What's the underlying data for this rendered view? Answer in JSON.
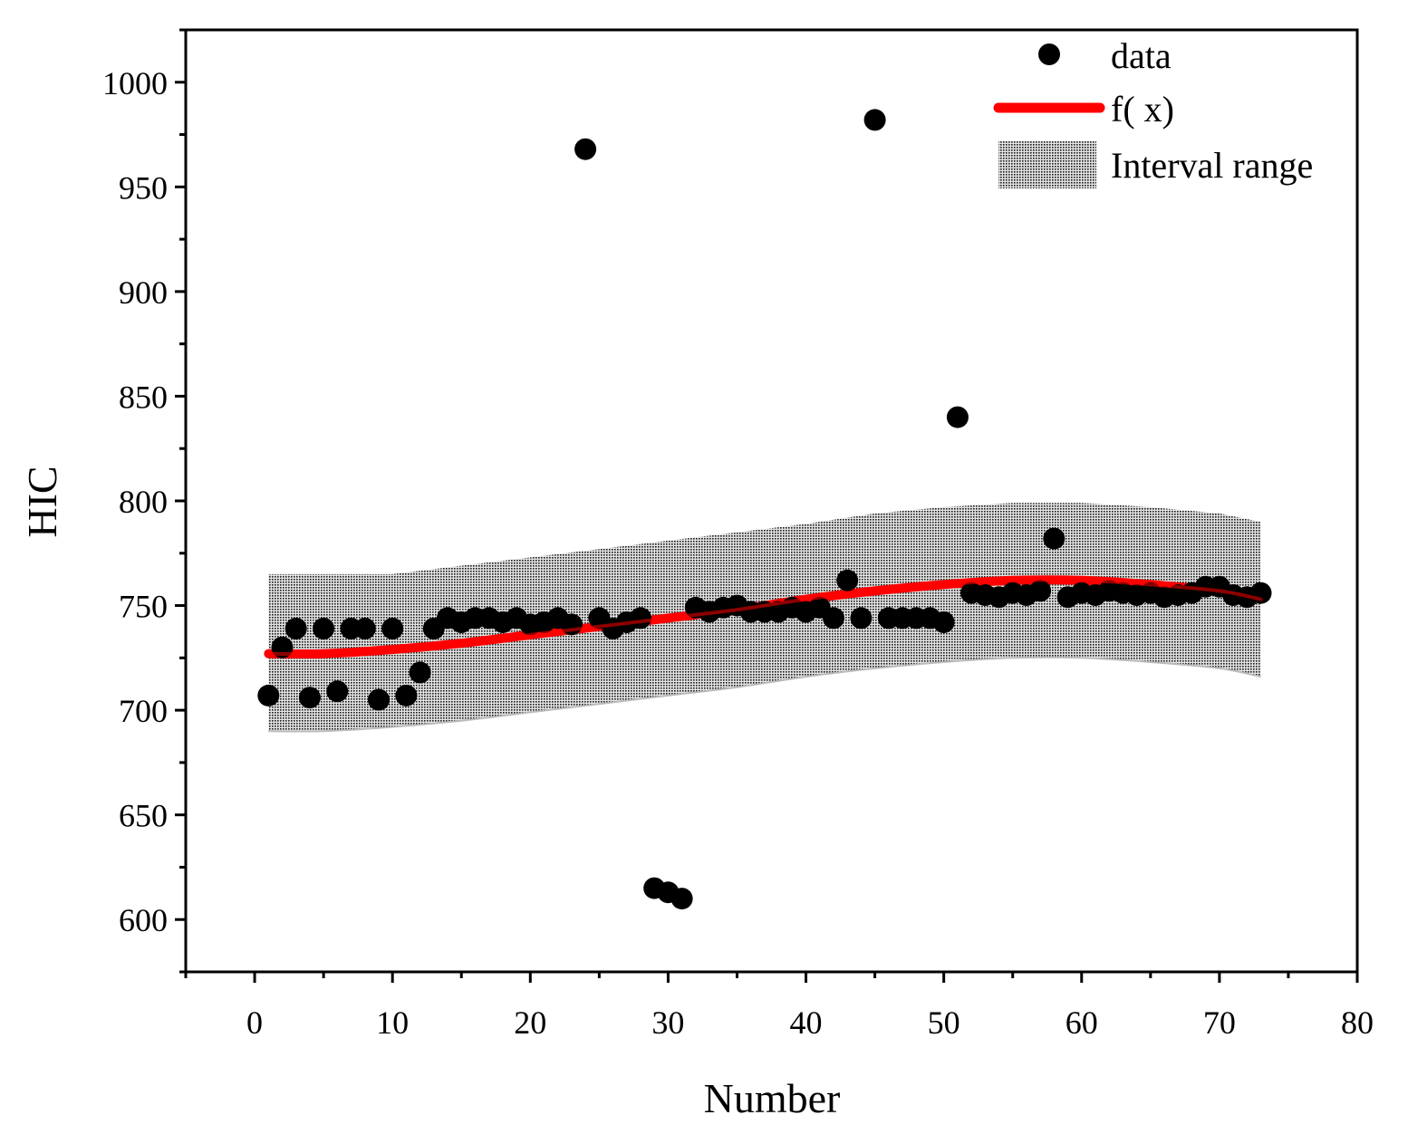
{
  "chart_data": {
    "type": "scatter",
    "title": "",
    "xlabel": "Number",
    "ylabel": "HIC",
    "xlim": [
      -5,
      80
    ],
    "ylim": [
      575,
      1025
    ],
    "x_ticks": [
      0,
      10,
      20,
      30,
      40,
      50,
      60,
      70,
      80
    ],
    "y_ticks": [
      600,
      650,
      700,
      750,
      800,
      850,
      900,
      950,
      1000
    ],
    "legend": {
      "placement": "top-right",
      "entries": [
        {
          "label": "data",
          "kind": "marker"
        },
        {
          "label": "f( x)",
          "kind": "line"
        },
        {
          "label": "Interval range",
          "kind": "band"
        }
      ]
    },
    "series": [
      {
        "name": "data",
        "color": "#000000",
        "points": [
          [
            1,
            707
          ],
          [
            2,
            730
          ],
          [
            3,
            739
          ],
          [
            4,
            706
          ],
          [
            5,
            739
          ],
          [
            6,
            709
          ],
          [
            7,
            739
          ],
          [
            8,
            739
          ],
          [
            9,
            705
          ],
          [
            10,
            739
          ],
          [
            11,
            707
          ],
          [
            12,
            718
          ],
          [
            13,
            739
          ],
          [
            14,
            744
          ],
          [
            15,
            742
          ],
          [
            16,
            744
          ],
          [
            17,
            744
          ],
          [
            18,
            742
          ],
          [
            19,
            744
          ],
          [
            20,
            741
          ],
          [
            21,
            742
          ],
          [
            22,
            744
          ],
          [
            23,
            741
          ],
          [
            24,
            968
          ],
          [
            25,
            744
          ],
          [
            26,
            739
          ],
          [
            27,
            742
          ],
          [
            28,
            744
          ],
          [
            29,
            615
          ],
          [
            30,
            613
          ],
          [
            31,
            610
          ],
          [
            32,
            749
          ],
          [
            33,
            747
          ],
          [
            34,
            749
          ],
          [
            35,
            750
          ],
          [
            36,
            747
          ],
          [
            37,
            747
          ],
          [
            38,
            747
          ],
          [
            39,
            749
          ],
          [
            40,
            747
          ],
          [
            41,
            749
          ],
          [
            42,
            744
          ],
          [
            43,
            762
          ],
          [
            44,
            744
          ],
          [
            45,
            982
          ],
          [
            46,
            744
          ],
          [
            47,
            744
          ],
          [
            48,
            744
          ],
          [
            49,
            744
          ],
          [
            50,
            742
          ],
          [
            51,
            840
          ],
          [
            52,
            756
          ],
          [
            53,
            755
          ],
          [
            54,
            754
          ],
          [
            55,
            756
          ],
          [
            56,
            755
          ],
          [
            57,
            757
          ],
          [
            58,
            782
          ],
          [
            59,
            754
          ],
          [
            60,
            756
          ],
          [
            61,
            755
          ],
          [
            62,
            757
          ],
          [
            63,
            756
          ],
          [
            64,
            755
          ],
          [
            65,
            756
          ],
          [
            66,
            754
          ],
          [
            67,
            755
          ],
          [
            68,
            756
          ],
          [
            69,
            759
          ],
          [
            70,
            759
          ],
          [
            71,
            755
          ],
          [
            72,
            754
          ],
          [
            73,
            756
          ]
        ]
      },
      {
        "name": "f( x)",
        "color": "#ff0000",
        "points": [
          [
            1,
            727
          ],
          [
            5,
            727
          ],
          [
            10,
            729
          ],
          [
            15,
            732
          ],
          [
            20,
            736
          ],
          [
            25,
            740
          ],
          [
            30,
            744
          ],
          [
            35,
            748
          ],
          [
            40,
            753
          ],
          [
            45,
            757
          ],
          [
            50,
            760
          ],
          [
            55,
            762
          ],
          [
            60,
            762
          ],
          [
            65,
            760
          ],
          [
            70,
            757
          ],
          [
            73,
            753
          ]
        ]
      },
      {
        "name": "Interval range",
        "color": "#555555",
        "upper": [
          [
            1,
            765
          ],
          [
            5,
            765
          ],
          [
            10,
            765
          ],
          [
            15,
            769
          ],
          [
            20,
            773
          ],
          [
            25,
            777
          ],
          [
            30,
            781
          ],
          [
            35,
            785
          ],
          [
            40,
            789
          ],
          [
            45,
            794
          ],
          [
            50,
            797
          ],
          [
            55,
            799
          ],
          [
            60,
            799
          ],
          [
            65,
            797
          ],
          [
            70,
            794
          ],
          [
            73,
            790
          ]
        ],
        "lower": [
          [
            1,
            690
          ],
          [
            5,
            690
          ],
          [
            10,
            692
          ],
          [
            15,
            695
          ],
          [
            20,
            699
          ],
          [
            25,
            703
          ],
          [
            30,
            707
          ],
          [
            35,
            711
          ],
          [
            40,
            716
          ],
          [
            45,
            720
          ],
          [
            50,
            723
          ],
          [
            55,
            725
          ],
          [
            60,
            725
          ],
          [
            65,
            723
          ],
          [
            70,
            720
          ],
          [
            73,
            716
          ]
        ]
      }
    ]
  }
}
